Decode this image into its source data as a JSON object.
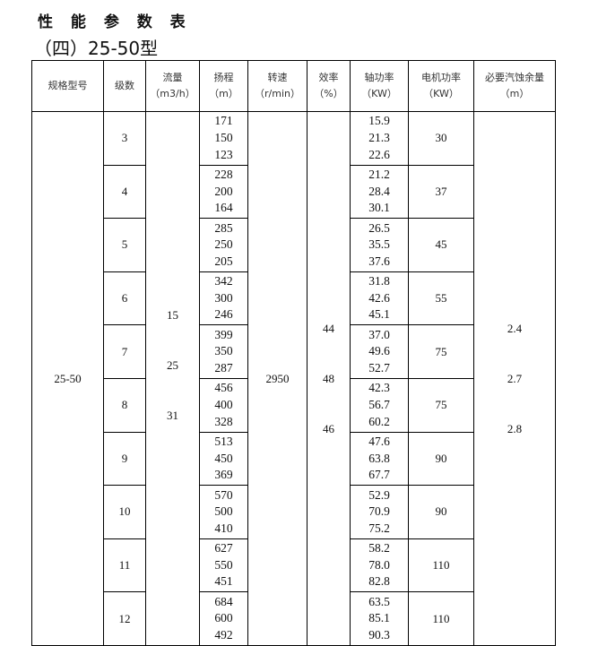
{
  "title": "性 能 参 数 表",
  "subtitle": "（四）25-50型",
  "headers": [
    {
      "name": "规格型号",
      "unit": ""
    },
    {
      "name": "级数",
      "unit": ""
    },
    {
      "name": "流量",
      "unit": "（m3/h）"
    },
    {
      "name": "扬程",
      "unit": "（m）"
    },
    {
      "name": "转速",
      "unit": "（r/min）"
    },
    {
      "name": "效率",
      "unit": "（%）"
    },
    {
      "name": "轴功率",
      "unit": "（KW）"
    },
    {
      "name": "电机功率",
      "unit": "（KW）"
    },
    {
      "name": "必要汽蚀余量",
      "unit": "（m）"
    }
  ],
  "model": "25-50",
  "flow": [
    "15",
    "25",
    "31"
  ],
  "speed": "2950",
  "efficiency": [
    "44",
    "48",
    "46"
  ],
  "npsh": [
    "2.4",
    "2.7",
    "2.8"
  ],
  "rows": [
    {
      "stage": "3",
      "head": [
        "171",
        "150",
        "123"
      ],
      "shaft": [
        "15.9",
        "21.3",
        "22.6"
      ],
      "motor": "30"
    },
    {
      "stage": "4",
      "head": [
        "228",
        "200",
        "164"
      ],
      "shaft": [
        "21.2",
        "28.4",
        "30.1"
      ],
      "motor": "37"
    },
    {
      "stage": "5",
      "head": [
        "285",
        "250",
        "205"
      ],
      "shaft": [
        "26.5",
        "35.5",
        "37.6"
      ],
      "motor": "45"
    },
    {
      "stage": "6",
      "head": [
        "342",
        "300",
        "246"
      ],
      "shaft": [
        "31.8",
        "42.6",
        "45.1"
      ],
      "motor": "55"
    },
    {
      "stage": "7",
      "head": [
        "399",
        "350",
        "287"
      ],
      "shaft": [
        "37.0",
        "49.6",
        "52.7"
      ],
      "motor": "75"
    },
    {
      "stage": "8",
      "head": [
        "456",
        "400",
        "328"
      ],
      "shaft": [
        "42.3",
        "56.7",
        "60.2"
      ],
      "motor": "75"
    },
    {
      "stage": "9",
      "head": [
        "513",
        "450",
        "369"
      ],
      "shaft": [
        "47.6",
        "63.8",
        "67.7"
      ],
      "motor": "90"
    },
    {
      "stage": "10",
      "head": [
        "570",
        "500",
        "410"
      ],
      "shaft": [
        "52.9",
        "70.9",
        "75.2"
      ],
      "motor": "90"
    },
    {
      "stage": "11",
      "head": [
        "627",
        "550",
        "451"
      ],
      "shaft": [
        "58.2",
        "78.0",
        "82.8"
      ],
      "motor": "110"
    },
    {
      "stage": "12",
      "head": [
        "684",
        "600",
        "492"
      ],
      "shaft": [
        "63.5",
        "85.1",
        "90.3"
      ],
      "motor": "110"
    }
  ]
}
